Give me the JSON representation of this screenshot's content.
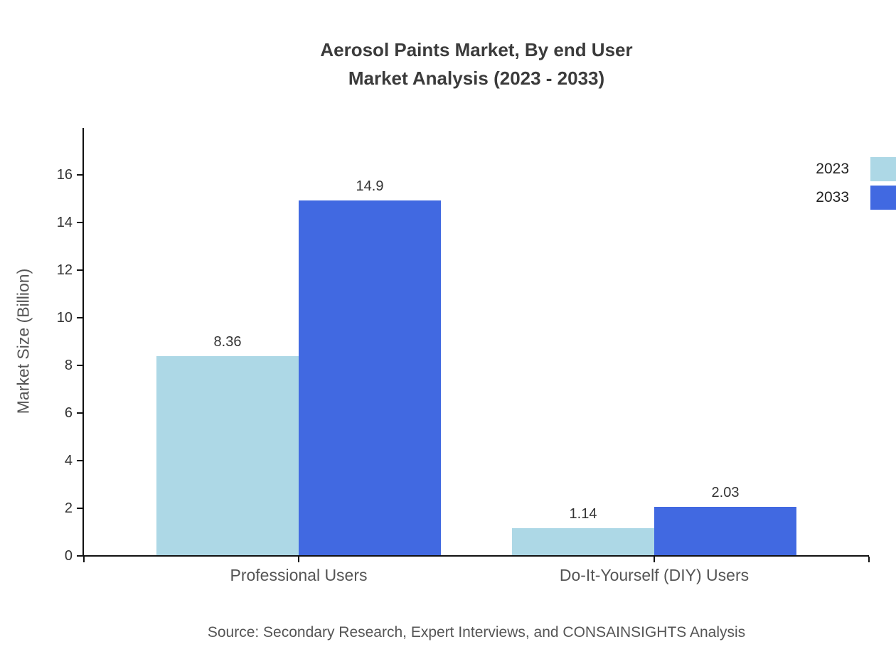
{
  "title": {
    "line1": "Aerosol Paints Market, By end User",
    "line2": "Market Analysis (2023 - 2033)"
  },
  "source_note": "Source: Secondary Research, Expert Interviews, and CONSAINSIGHTS Analysis",
  "chart_data": {
    "type": "bar",
    "title": "Aerosol Paints Market, By end User Market Analysis (2023 - 2033)",
    "categories": [
      "Professional Users",
      "Do-It-Yourself (DIY) Users"
    ],
    "series": [
      {
        "name": "2023",
        "color": "#add8e6",
        "values": [
          8.36,
          1.14
        ]
      },
      {
        "name": "2033",
        "color": "#4169e1",
        "values": [
          14.9,
          2.03
        ]
      }
    ],
    "xlabel": "",
    "ylabel": "Market Size (Billion)",
    "ylim": [
      0,
      16
    ],
    "yticks": [
      0,
      2,
      4,
      6,
      8,
      10,
      12,
      14,
      16
    ],
    "grid": false,
    "legend_position": "top-right",
    "bar_value_labels": true
  },
  "colors": {
    "background": "#ffffff",
    "title_text": "#3b3b3b",
    "axis_line": "#111111",
    "tick_text": "#333333",
    "value_text": "#333333",
    "category_text": "#555555",
    "axis_title_text": "#555555",
    "source_text": "#555555",
    "legend_text": "#222222"
  }
}
